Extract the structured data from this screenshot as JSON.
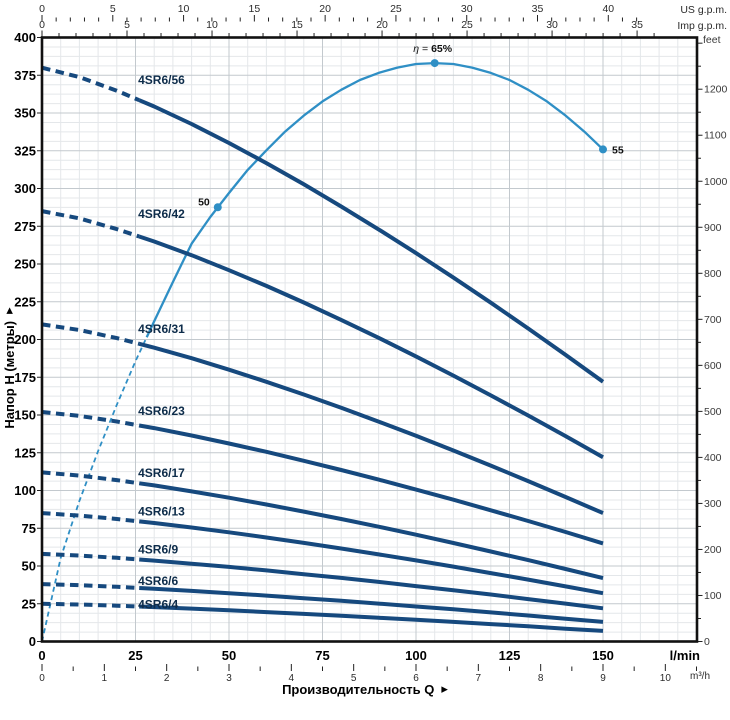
{
  "colors": {
    "pump_curve": "#16497e",
    "efficiency_curve": "#2f8fc5",
    "curve_label": "#0d2c4a",
    "grid_minor": "#e4e7ea",
    "grid_major": "#c3c9ce",
    "border": "#111111",
    "tick": "#222222"
  },
  "chart_data": {
    "type": "line",
    "xlabel": "Производительность Q",
    "ylabel_left": "Напор H (метры)",
    "axis_arrow": "▸",
    "x_axis_lmin": {
      "unit": "l/min",
      "tick_labels": [
        0,
        25,
        50,
        75,
        100,
        125,
        150
      ],
      "range_lmin": [
        0,
        175
      ]
    },
    "x_axis_m3h": {
      "unit": "m³/h",
      "tick_labels": [
        0,
        1,
        2,
        3,
        4,
        5,
        6,
        7,
        8,
        9,
        10
      ],
      "lpm_per_unit": 16.6667,
      "minor_step": 0.5,
      "minor_max": 10.5
    },
    "x_axis_us_gpm": {
      "unit": "US g.p.m.",
      "tick_labels": [
        0,
        5,
        10,
        15,
        20,
        25,
        30,
        35,
        40
      ],
      "lpm_per_unit": 3.7854,
      "minor_step": 1,
      "minor_max": 42
    },
    "x_axis_imp_gpm": {
      "unit": "Imp g.p.m.",
      "tick_labels": [
        0,
        5,
        10,
        15,
        20,
        25,
        30,
        35
      ],
      "lpm_per_unit": 4.5461,
      "minor_step": 1,
      "minor_max": 36
    },
    "y_axis_m": {
      "tick_labels": [
        0,
        25,
        50,
        75,
        100,
        125,
        150,
        175,
        200,
        225,
        250,
        275,
        300,
        325,
        350,
        375,
        400
      ],
      "range_m": [
        0,
        400
      ]
    },
    "y_axis_feet": {
      "unit": "feet",
      "tick_labels": [
        0,
        100,
        200,
        300,
        400,
        500,
        600,
        700,
        800,
        900,
        1000,
        1100,
        1200
      ],
      "minor_step": 50,
      "minor_max": 1300,
      "m_per_foot": 0.3048
    },
    "grid": {
      "minor_h_step_m": 6.25,
      "major_h_step_m": 25,
      "minor_v_step_lmin": 5,
      "major_v_step_lmin": 25
    },
    "pump_curves": {
      "dash_until_q": 26,
      "series": [
        {
          "name": "4SR6/56",
          "label_q": 25.7,
          "label_h": 372,
          "points": [
            [
              0,
              380
            ],
            [
              10,
              373.8
            ],
            [
              20,
              364.8
            ],
            [
              30,
              354.3
            ],
            [
              40,
              342.7
            ],
            [
              50,
              330.1
            ],
            [
              60,
              316.8
            ],
            [
              70,
              302.8
            ],
            [
              80,
              288.1
            ],
            [
              90,
              272.9
            ],
            [
              100,
              257.2
            ],
            [
              110,
              241
            ],
            [
              120,
              224.4
            ],
            [
              130,
              207.3
            ],
            [
              140,
              189.8
            ],
            [
              150,
              172
            ]
          ]
        },
        {
          "name": "4SR6/42",
          "label_q": 25.7,
          "label_h": 283,
          "points": [
            [
              0,
              285
            ],
            [
              10,
              280.2
            ],
            [
              20,
              273.1
            ],
            [
              30,
              264.9
            ],
            [
              40,
              255.8
            ],
            [
              50,
              245.9
            ],
            [
              60,
              235.5
            ],
            [
              70,
              224.5
            ],
            [
              80,
              213
            ],
            [
              90,
              201.1
            ],
            [
              100,
              188.8
            ],
            [
              110,
              176.1
            ],
            [
              120,
              163
            ],
            [
              130,
              149.7
            ],
            [
              140,
              136
            ],
            [
              150,
              122
            ]
          ]
        },
        {
          "name": "4SR6/31",
          "label_q": 25.7,
          "label_h": 207,
          "points": [
            [
              0,
              210
            ],
            [
              10,
              206.3
            ],
            [
              20,
              200.9
            ],
            [
              30,
              194.6
            ],
            [
              40,
              187.6
            ],
            [
              50,
              180
            ],
            [
              60,
              172
            ],
            [
              70,
              163.6
            ],
            [
              80,
              154.8
            ],
            [
              90,
              145.6
            ],
            [
              100,
              136.2
            ],
            [
              110,
              126.5
            ],
            [
              120,
              116.5
            ],
            [
              130,
              106.2
            ],
            [
              140,
              95.7
            ],
            [
              150,
              85
            ]
          ]
        },
        {
          "name": "4SR6/23",
          "label_q": 25.7,
          "label_h": 152.5,
          "points": [
            [
              0,
              152
            ],
            [
              10,
              149.4
            ],
            [
              20,
              145.7
            ],
            [
              30,
              141.3
            ],
            [
              40,
              136.4
            ],
            [
              50,
              131.1
            ],
            [
              60,
              125.6
            ],
            [
              70,
              119.7
            ],
            [
              80,
              113.6
            ],
            [
              90,
              107.2
            ],
            [
              100,
              100.6
            ],
            [
              110,
              93.9
            ],
            [
              120,
              86.9
            ],
            [
              130,
              79.8
            ],
            [
              140,
              72.5
            ],
            [
              150,
              65
            ]
          ]
        },
        {
          "name": "4SR6/17",
          "label_q": 25.7,
          "label_h": 111.5,
          "points": [
            [
              0,
              112
            ],
            [
              10,
              109.9
            ],
            [
              20,
              106.9
            ],
            [
              30,
              103.4
            ],
            [
              40,
              99.4
            ],
            [
              50,
              95.2
            ],
            [
              60,
              90.7
            ],
            [
              70,
              86
            ],
            [
              80,
              81.1
            ],
            [
              90,
              76
            ],
            [
              100,
              70.7
            ],
            [
              110,
              65.2
            ],
            [
              120,
              59.6
            ],
            [
              130,
              53.9
            ],
            [
              140,
              48
            ],
            [
              150,
              42
            ]
          ]
        },
        {
          "name": "4SR6/13",
          "label_q": 25.7,
          "label_h": 86,
          "points": [
            [
              0,
              85
            ],
            [
              10,
              83.4
            ],
            [
              20,
              81.1
            ],
            [
              30,
              78.5
            ],
            [
              40,
              75.5
            ],
            [
              50,
              72.3
            ],
            [
              60,
              68.9
            ],
            [
              70,
              65.3
            ],
            [
              80,
              61.6
            ],
            [
              90,
              57.7
            ],
            [
              100,
              53.7
            ],
            [
              110,
              49.6
            ],
            [
              120,
              45.3
            ],
            [
              130,
              41
            ],
            [
              140,
              36.5
            ],
            [
              150,
              32
            ]
          ]
        },
        {
          "name": "4SR6/9",
          "label_q": 25.7,
          "label_h": 61,
          "points": [
            [
              0,
              58
            ],
            [
              10,
              56.9
            ],
            [
              20,
              55.4
            ],
            [
              30,
              53.6
            ],
            [
              40,
              51.5
            ],
            [
              50,
              49.4
            ],
            [
              60,
              47.1
            ],
            [
              70,
              44.6
            ],
            [
              80,
              42.1
            ],
            [
              90,
              39.5
            ],
            [
              100,
              36.7
            ],
            [
              110,
              34
            ],
            [
              120,
              31.1
            ],
            [
              130,
              28.1
            ],
            [
              140,
              25.1
            ],
            [
              150,
              22
            ]
          ]
        },
        {
          "name": "4SR6/6",
          "label_q": 25.7,
          "label_h": 40,
          "points": [
            [
              0,
              38
            ],
            [
              10,
              37.3
            ],
            [
              20,
              36.2
            ],
            [
              30,
              34.9
            ],
            [
              40,
              33.5
            ],
            [
              50,
              32
            ],
            [
              60,
              30.4
            ],
            [
              70,
              28.7
            ],
            [
              80,
              27
            ],
            [
              90,
              25.1
            ],
            [
              100,
              23.2
            ],
            [
              110,
              21.3
            ],
            [
              120,
              19.3
            ],
            [
              130,
              17.2
            ],
            [
              140,
              15.1
            ],
            [
              150,
              13
            ]
          ]
        },
        {
          "name": "4SR6/4",
          "label_q": 25.7,
          "label_h": 24.5,
          "points": [
            [
              0,
              25
            ],
            [
              10,
              24.5
            ],
            [
              20,
              23.7
            ],
            [
              30,
              22.8
            ],
            [
              40,
              21.8
            ],
            [
              50,
              20.7
            ],
            [
              60,
              19.5
            ],
            [
              70,
              18.3
            ],
            [
              80,
              17.1
            ],
            [
              90,
              15.7
            ],
            [
              100,
              14.4
            ],
            [
              110,
              13
            ],
            [
              120,
              11.5
            ],
            [
              130,
              10.1
            ],
            [
              140,
              8.5
            ],
            [
              150,
              7
            ]
          ]
        }
      ]
    },
    "efficiency_curve": {
      "dash_until_q": 28,
      "scale_m_per_pct": 5.893,
      "points": [
        [
          0,
          0
        ],
        [
          5,
          9.4
        ],
        [
          10,
          15.8
        ],
        [
          15,
          21.4
        ],
        [
          20,
          26.6
        ],
        [
          25,
          31.5
        ],
        [
          30,
          36
        ],
        [
          35,
          40.4
        ],
        [
          40,
          44.7
        ],
        [
          45,
          47.7
        ],
        [
          50,
          50.4
        ],
        [
          55,
          53
        ],
        [
          60,
          55.2
        ],
        [
          65,
          57.3
        ],
        [
          70,
          59.1
        ],
        [
          75,
          60.7
        ],
        [
          80,
          62
        ],
        [
          85,
          63.1
        ],
        [
          90,
          63.9
        ],
        [
          95,
          64.5
        ],
        [
          100,
          64.9
        ],
        [
          105,
          65
        ],
        [
          110,
          64.9
        ],
        [
          115,
          64.5
        ],
        [
          120,
          63.9
        ],
        [
          125,
          63.1
        ],
        [
          130,
          62
        ],
        [
          135,
          60.7
        ],
        [
          140,
          59.1
        ],
        [
          145,
          57.3
        ],
        [
          150,
          55.3
        ]
      ],
      "markers": [
        {
          "q": 47,
          "eta": 48.8,
          "label": "50",
          "side": "left"
        },
        {
          "q": 105,
          "eta": 65,
          "label_symbol": "η",
          "label_eq": " = ",
          "label_value": "65%",
          "side": "top"
        },
        {
          "q": 150,
          "eta": 55.3,
          "label": "55",
          "side": "right"
        }
      ]
    }
  }
}
